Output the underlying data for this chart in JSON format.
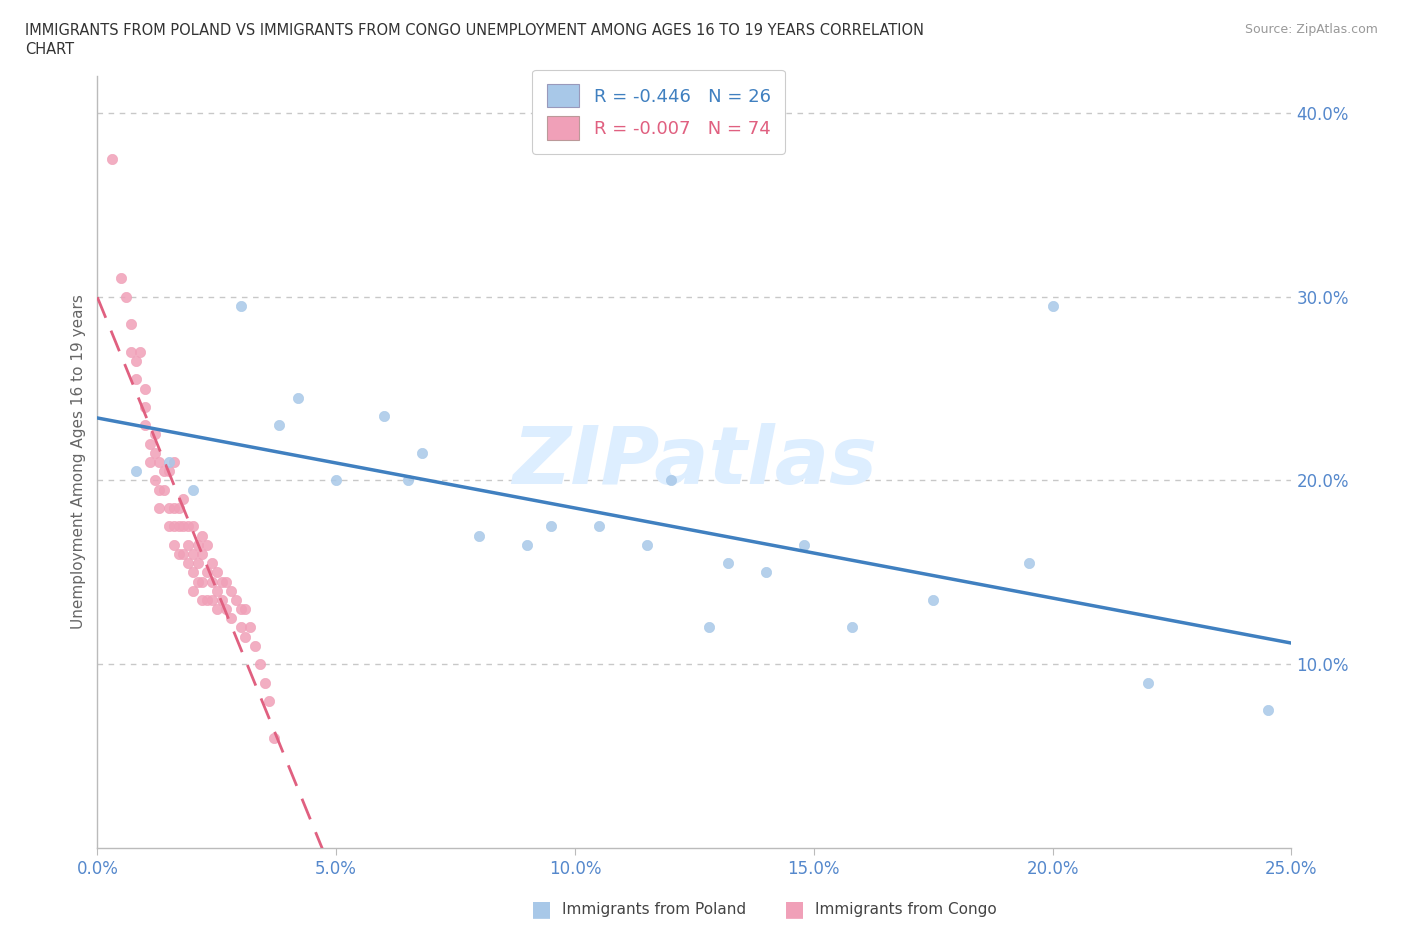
{
  "title": "IMMIGRANTS FROM POLAND VS IMMIGRANTS FROM CONGO UNEMPLOYMENT AMONG AGES 16 TO 19 YEARS CORRELATION\nCHART",
  "source": "Source: ZipAtlas.com",
  "ylabel": "Unemployment Among Ages 16 to 19 years",
  "xmin": 0.0,
  "xmax": 0.25,
  "ymin": 0.0,
  "ymax": 0.42,
  "ytick_labels": [
    "",
    "10.0%",
    "20.0%",
    "30.0%",
    "40.0%"
  ],
  "ytick_values": [
    0.0,
    0.1,
    0.2,
    0.3,
    0.4
  ],
  "xtick_values": [
    0.0,
    0.05,
    0.1,
    0.15,
    0.2,
    0.25
  ],
  "grid_color": "#c8c8c8",
  "poland_color": "#a8c8e8",
  "congo_color": "#f0a0b8",
  "poland_R": -0.446,
  "poland_N": 26,
  "congo_R": -0.007,
  "congo_N": 74,
  "poland_line_color": "#4080c0",
  "congo_line_color": "#e06080",
  "watermark": "ZIPatlas",
  "watermark_color": "#ddeeff",
  "watermark_fontsize": 58,
  "poland_scatter_x": [
    0.008,
    0.015,
    0.02,
    0.03,
    0.038,
    0.042,
    0.05,
    0.06,
    0.065,
    0.068,
    0.08,
    0.09,
    0.095,
    0.105,
    0.115,
    0.12,
    0.128,
    0.132,
    0.14,
    0.148,
    0.158,
    0.175,
    0.195,
    0.2,
    0.22,
    0.245
  ],
  "poland_scatter_y": [
    0.205,
    0.21,
    0.195,
    0.295,
    0.23,
    0.245,
    0.2,
    0.235,
    0.2,
    0.215,
    0.17,
    0.165,
    0.175,
    0.175,
    0.165,
    0.2,
    0.12,
    0.155,
    0.15,
    0.165,
    0.12,
    0.135,
    0.155,
    0.295,
    0.09,
    0.075
  ],
  "congo_scatter_x": [
    0.003,
    0.005,
    0.006,
    0.007,
    0.007,
    0.008,
    0.008,
    0.009,
    0.01,
    0.01,
    0.01,
    0.011,
    0.011,
    0.012,
    0.012,
    0.012,
    0.013,
    0.013,
    0.013,
    0.014,
    0.014,
    0.015,
    0.015,
    0.015,
    0.016,
    0.016,
    0.016,
    0.016,
    0.017,
    0.017,
    0.017,
    0.018,
    0.018,
    0.018,
    0.019,
    0.019,
    0.019,
    0.02,
    0.02,
    0.02,
    0.02,
    0.021,
    0.021,
    0.021,
    0.022,
    0.022,
    0.022,
    0.022,
    0.023,
    0.023,
    0.023,
    0.024,
    0.024,
    0.024,
    0.025,
    0.025,
    0.025,
    0.026,
    0.026,
    0.027,
    0.027,
    0.028,
    0.028,
    0.029,
    0.03,
    0.03,
    0.031,
    0.031,
    0.032,
    0.033,
    0.034,
    0.035,
    0.036,
    0.037
  ],
  "congo_scatter_y": [
    0.375,
    0.31,
    0.3,
    0.285,
    0.27,
    0.265,
    0.255,
    0.27,
    0.24,
    0.23,
    0.25,
    0.22,
    0.21,
    0.215,
    0.225,
    0.2,
    0.21,
    0.195,
    0.185,
    0.205,
    0.195,
    0.205,
    0.185,
    0.175,
    0.21,
    0.185,
    0.175,
    0.165,
    0.185,
    0.175,
    0.16,
    0.19,
    0.175,
    0.16,
    0.175,
    0.165,
    0.155,
    0.175,
    0.16,
    0.15,
    0.14,
    0.165,
    0.155,
    0.145,
    0.17,
    0.16,
    0.145,
    0.135,
    0.165,
    0.15,
    0.135,
    0.155,
    0.145,
    0.135,
    0.15,
    0.14,
    0.13,
    0.145,
    0.135,
    0.145,
    0.13,
    0.14,
    0.125,
    0.135,
    0.13,
    0.12,
    0.13,
    0.115,
    0.12,
    0.11,
    0.1,
    0.09,
    0.08,
    0.06
  ]
}
